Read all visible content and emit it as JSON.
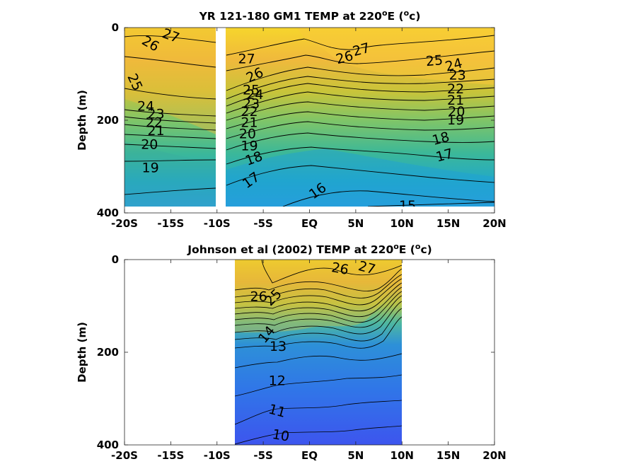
{
  "chart_data": [
    {
      "type": "heatmap",
      "title": "YR 121-180 GM1 TEMP at 220",
      "title_unit": "E (",
      "title_end": "c)",
      "degree_symbol": "o",
      "ylabel": "Depth (m)",
      "xlabel": "",
      "xlim": [
        -20,
        20
      ],
      "ylim": [
        0,
        400
      ],
      "y_reversed": true,
      "xticks": [
        -20,
        -15,
        -10,
        -5,
        0,
        5,
        10,
        15,
        20
      ],
      "xtick_labels": [
        "-20S",
        "-15S",
        "-10S",
        "-5S",
        "EQ",
        "5N",
        "10N",
        "15N",
        "20N"
      ],
      "yticks": [
        0,
        200,
        400
      ],
      "ytick_labels": [
        "0",
        "200",
        "400"
      ],
      "data_extent": {
        "x": [
          -20,
          20
        ],
        "y": [
          0,
          390
        ]
      },
      "masked_lat": [
        -10.2,
        -9.1
      ],
      "colormap": [
        "#f6d52c",
        "#f0b93c",
        "#c8c43a",
        "#7fc568",
        "#3cb898",
        "#22a9c9",
        "#2b9ee0"
      ],
      "contour_labels": [
        {
          "text": "27",
          "lat": -15,
          "depth": 18,
          "rot": 20
        },
        {
          "text": "26",
          "lat": -17.2,
          "depth": 35,
          "rot": 30
        },
        {
          "text": "25",
          "lat": -18.9,
          "depth": 118,
          "rot": 65
        },
        {
          "text": "24",
          "lat": -17.7,
          "depth": 170,
          "rot": 0
        },
        {
          "text": "23",
          "lat": -16.6,
          "depth": 187,
          "rot": 0
        },
        {
          "text": "22",
          "lat": -16.8,
          "depth": 205,
          "rot": 0
        },
        {
          "text": "21",
          "lat": -16.6,
          "depth": 223,
          "rot": 0
        },
        {
          "text": "20",
          "lat": -17.3,
          "depth": 253,
          "rot": 0
        },
        {
          "text": "19",
          "lat": -17.2,
          "depth": 303,
          "rot": 0
        },
        {
          "text": "27",
          "lat": -6.8,
          "depth": 68,
          "rot": 0
        },
        {
          "text": "26",
          "lat": -5.9,
          "depth": 103,
          "rot": -25
        },
        {
          "text": "25",
          "lat": -6.3,
          "depth": 135,
          "rot": 0
        },
        {
          "text": "24",
          "lat": -5.9,
          "depth": 145,
          "rot": 0
        },
        {
          "text": "23",
          "lat": -6.3,
          "depth": 165,
          "rot": 0
        },
        {
          "text": "22",
          "lat": -6.5,
          "depth": 182,
          "rot": 0
        },
        {
          "text": "21",
          "lat": -6.5,
          "depth": 205,
          "rot": 0
        },
        {
          "text": "20",
          "lat": -6.7,
          "depth": 230,
          "rot": 0
        },
        {
          "text": "19",
          "lat": -6.5,
          "depth": 256,
          "rot": 0
        },
        {
          "text": "18",
          "lat": -6.0,
          "depth": 283,
          "rot": -20
        },
        {
          "text": "17",
          "lat": -6.3,
          "depth": 330,
          "rot": -35
        },
        {
          "text": "16",
          "lat": 0.9,
          "depth": 353,
          "rot": -35
        },
        {
          "text": "15",
          "lat": 10.6,
          "depth": 385,
          "rot": 0
        },
        {
          "text": "27",
          "lat": 5.6,
          "depth": 48,
          "rot": -15
        },
        {
          "text": "26",
          "lat": 3.8,
          "depth": 65,
          "rot": -15
        },
        {
          "text": "25",
          "lat": 13.5,
          "depth": 72,
          "rot": -5
        },
        {
          "text": "24",
          "lat": 15.6,
          "depth": 81,
          "rot": -15
        },
        {
          "text": "23",
          "lat": 16.0,
          "depth": 103,
          "rot": 0
        },
        {
          "text": "22",
          "lat": 15.8,
          "depth": 133,
          "rot": 0
        },
        {
          "text": "21",
          "lat": 15.8,
          "depth": 157,
          "rot": 0
        },
        {
          "text": "20",
          "lat": 15.9,
          "depth": 182,
          "rot": 0
        },
        {
          "text": "19",
          "lat": 15.8,
          "depth": 200,
          "rot": 0
        },
        {
          "text": "18",
          "lat": 14.2,
          "depth": 240,
          "rot": -15
        },
        {
          "text": "17",
          "lat": 14.6,
          "depth": 276,
          "rot": -15
        }
      ]
    },
    {
      "type": "heatmap",
      "title": "Johnson et al (2002) TEMP at 220",
      "title_unit": "E (",
      "title_end": "c)",
      "degree_symbol": "o",
      "ylabel": "Depth (m)",
      "xlabel": "",
      "xlim": [
        -20,
        20
      ],
      "ylim": [
        0,
        400
      ],
      "y_reversed": true,
      "xticks": [
        -20,
        -15,
        -10,
        -5,
        0,
        5,
        10,
        15,
        20
      ],
      "xtick_labels": [
        "-20S",
        "-15S",
        "-10S",
        "-5S",
        "EQ",
        "5N",
        "10N",
        "15N",
        "20N"
      ],
      "yticks": [
        0,
        200,
        400
      ],
      "ytick_labels": [
        "0",
        "200",
        "400"
      ],
      "data_extent": {
        "x": [
          -8,
          10
        ],
        "y": [
          0,
          400
        ]
      },
      "colormap": [
        "#f3d02e",
        "#e8b33d",
        "#b6c34a",
        "#4fb8a0",
        "#2d90d8",
        "#3076e8",
        "#3d55ee"
      ],
      "contour_labels": [
        {
          "text": "27",
          "lat": 6.2,
          "depth": 18,
          "rot": 15
        },
        {
          "text": "26",
          "lat": 3.3,
          "depth": 20,
          "rot": 10
        },
        {
          "text": "26",
          "lat": -5.5,
          "depth": 80,
          "rot": 0
        },
        {
          "text": "25",
          "lat": -3.9,
          "depth": 82,
          "rot": -45
        },
        {
          "text": "14",
          "lat": -4.6,
          "depth": 162,
          "rot": -50
        },
        {
          "text": "13",
          "lat": -3.4,
          "depth": 188,
          "rot": 0
        },
        {
          "text": "12",
          "lat": -3.5,
          "depth": 262,
          "rot": 0
        },
        {
          "text": "11",
          "lat": -3.5,
          "depth": 327,
          "rot": 15
        },
        {
          "text": "10",
          "lat": -3.1,
          "depth": 380,
          "rot": 10
        }
      ]
    }
  ]
}
